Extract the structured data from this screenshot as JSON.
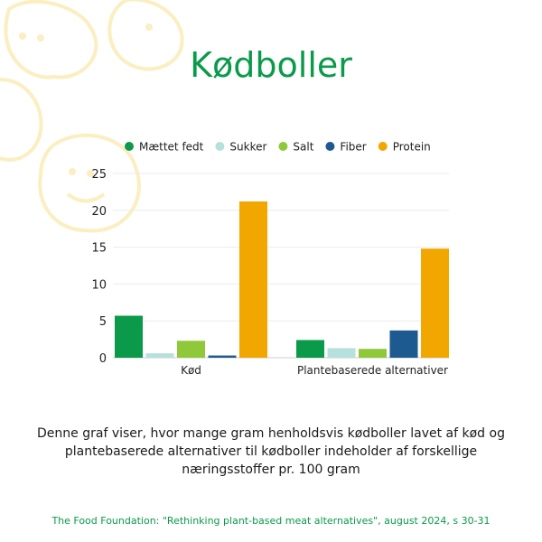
{
  "title": "Kødboller",
  "description": "Denne graf viser, hvor mange gram henholdsvis kødboller lavet af kød og plantebaserede alternativer til kødboller indeholder af forskellige næringsstoffer pr. 100 gram",
  "source": "The Food Foundation: \"Rethinking plant-based meat alternatives\", august 2024, s 30-31",
  "colors": {
    "title": "#0a9a4a",
    "decoration": "#fbeec0"
  },
  "chart_data": {
    "type": "bar",
    "categories": [
      "Kød",
      "Plantebaserede alternativer"
    ],
    "series": [
      {
        "name": "Mættet fedt",
        "color": "#0a9a4a",
        "values": [
          5.7,
          2.4
        ]
      },
      {
        "name": "Sukker",
        "color": "#b6e0dc",
        "values": [
          0.6,
          1.3
        ]
      },
      {
        "name": "Salt",
        "color": "#8fc93a",
        "values": [
          2.3,
          1.2
        ]
      },
      {
        "name": "Fiber",
        "color": "#1d5a8f",
        "values": [
          0.3,
          3.7
        ]
      },
      {
        "name": "Protein",
        "color": "#f2a600",
        "values": [
          21.2,
          14.8
        ]
      }
    ],
    "ylim": [
      0,
      25
    ],
    "yticks": [
      0,
      5,
      10,
      15,
      20,
      25
    ],
    "grid": true,
    "legend": "top"
  }
}
